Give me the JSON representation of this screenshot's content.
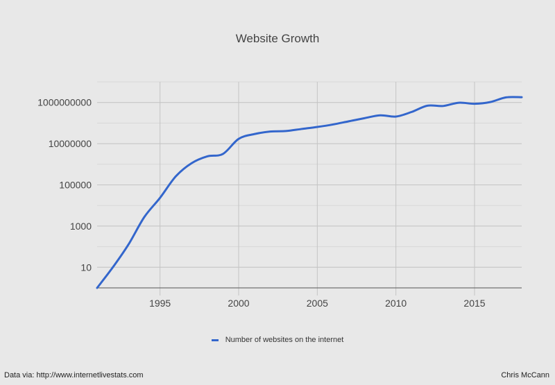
{
  "chart_data": {
    "type": "line",
    "title": "Website Growth",
    "xlabel": "",
    "ylabel": "",
    "y_scale": "log",
    "xlim": [
      1991,
      2018
    ],
    "ylim": [
      1,
      10000000000
    ],
    "x_ticks": [
      1995,
      2000,
      2005,
      2010,
      2015
    ],
    "y_ticks": [
      {
        "value": 10,
        "label": "10"
      },
      {
        "value": 1000,
        "label": "1000"
      },
      {
        "value": 100000,
        "label": "100000"
      },
      {
        "value": 10000000,
        "label": "10000000"
      },
      {
        "value": 1000000000,
        "label": "1000000000"
      }
    ],
    "grid": true,
    "legend_position": "bottom",
    "series": [
      {
        "name": "Number of websites on the internet",
        "color": "#3366cc",
        "x": [
          1991,
          1992,
          1993,
          1994,
          1995,
          1996,
          1997,
          1998,
          1999,
          2000,
          2001,
          2002,
          2003,
          2004,
          2005,
          2006,
          2007,
          2008,
          2009,
          2010,
          2011,
          2012,
          2013,
          2014,
          2015,
          2016,
          2017,
          2018
        ],
        "y": [
          1,
          10,
          130,
          2740,
          23500,
          257601,
          1117255,
          2410067,
          3177453,
          17087182,
          29254370,
          38760373,
          40912332,
          51611646,
          64780617,
          85507314,
          121892559,
          172338726,
          238027855,
          206956723,
          346004403,
          697089489,
          672985183,
          968882453,
          863105652,
          1045534808,
          1766926408,
          1800000000
        ]
      }
    ]
  },
  "footer": {
    "source": "Data via: http://www.internetlivestats.com",
    "author": "Chris McCann"
  }
}
